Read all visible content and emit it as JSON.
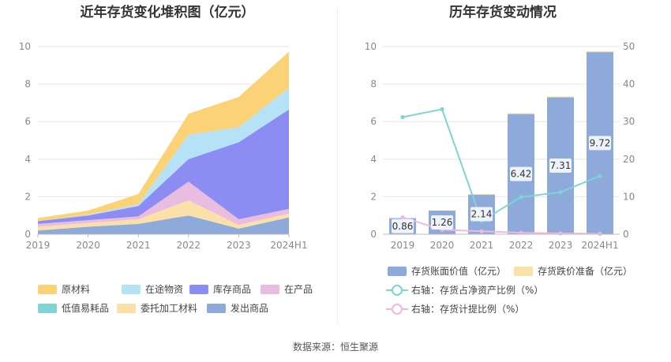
{
  "footer": {
    "source": "数据来源：恒生聚源"
  },
  "chart_data": [
    {
      "type": "area",
      "title": "近年存货变化堆积图（亿元）",
      "x": [
        "2019",
        "2020",
        "2021",
        "2022",
        "2023",
        "2024H1"
      ],
      "ylim": [
        0,
        10
      ],
      "yticks": [
        0,
        2,
        4,
        6,
        8,
        10
      ],
      "grid": true,
      "legend_position": "bottom",
      "series": [
        {
          "name": "发出商品",
          "color": "#8eaadb",
          "values": [
            0.2,
            0.4,
            0.55,
            1.0,
            0.3,
            0.9
          ]
        },
        {
          "name": "委托加工材料",
          "color": "#fbe0a8",
          "values": [
            0.2,
            0.2,
            0.25,
            0.8,
            0.2,
            0.2
          ]
        },
        {
          "name": "低值易耗品",
          "color": "#7fd4d4",
          "values": [
            0.0,
            0.0,
            0.0,
            0.0,
            0.0,
            0.0
          ]
        },
        {
          "name": "在产品",
          "color": "#e8bde0",
          "values": [
            0.15,
            0.15,
            0.15,
            1.0,
            0.3,
            0.25
          ]
        },
        {
          "name": "库存商品",
          "color": "#8c8cf2",
          "values": [
            0.15,
            0.25,
            0.55,
            1.2,
            4.1,
            5.3
          ]
        },
        {
          "name": "在途物资",
          "color": "#b6e2f8",
          "values": [
            0.0,
            0.05,
            0.1,
            1.3,
            0.8,
            1.15
          ]
        },
        {
          "name": "原材料",
          "color": "#fcd277",
          "values": [
            0.16,
            0.21,
            0.54,
            1.12,
            1.61,
            1.92
          ]
        }
      ],
      "legend_order": [
        "原材料",
        "在途物资",
        "库存商品",
        "在产品",
        "低值易耗品",
        "委托加工材料",
        "发出商品"
      ]
    },
    {
      "type": "bar",
      "title": "历年存货变动情况",
      "categories": [
        "2019",
        "2020",
        "2021",
        "2022",
        "2023",
        "2024H1"
      ],
      "ylim": [
        0,
        10
      ],
      "yticks": [
        0,
        2,
        4,
        6,
        8,
        10
      ],
      "y2lim": [
        0,
        50
      ],
      "y2ticks": [
        0,
        10,
        20,
        30,
        40,
        50
      ],
      "grid": true,
      "legend_position": "bottom",
      "series": [
        {
          "name": "存货账面价值（亿元）",
          "kind": "bar",
          "axis": "left",
          "color": "#8eaadb",
          "values": [
            0.86,
            1.26,
            2.14,
            6.42,
            7.31,
            9.72
          ],
          "labels": [
            "0.86",
            "1.26",
            "2.14",
            "6.42",
            "7.31",
            "9.72"
          ]
        },
        {
          "name": "存货跌价准备（亿元）",
          "kind": "bar",
          "axis": "left",
          "color": "#fbe0a8",
          "values": [
            0.0,
            0.0,
            0.01,
            0.03,
            0.03,
            0.03
          ]
        },
        {
          "name": "右轴：存货占净资产比例（%）",
          "kind": "line",
          "axis": "right",
          "color": "#7fd4d4",
          "values": [
            31.2,
            33.3,
            3.5,
            9.9,
            11.2,
            15.5
          ]
        },
        {
          "name": "右轴：存货计提比例（%）",
          "kind": "line",
          "axis": "right",
          "color": "#f0b8de",
          "values": [
            4.5,
            1.2,
            0.8,
            0.4,
            0.2,
            0.1
          ]
        }
      ]
    }
  ]
}
